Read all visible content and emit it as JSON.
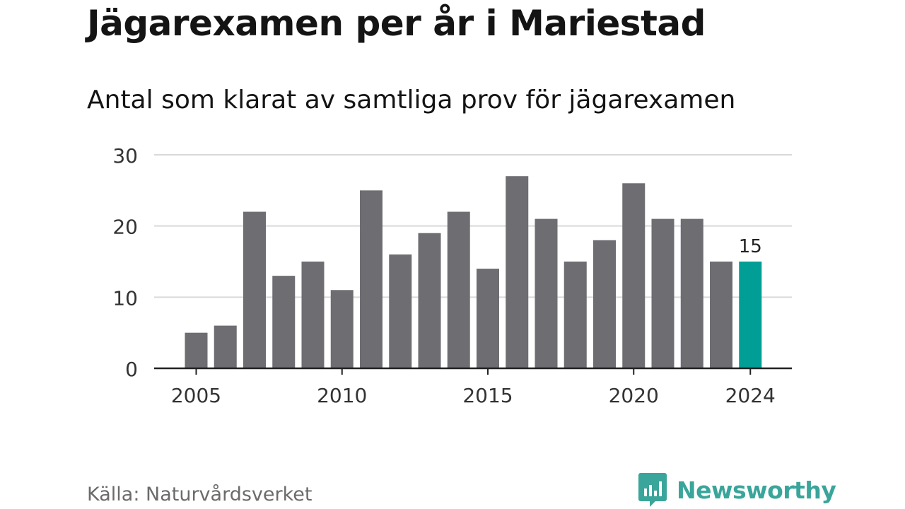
{
  "header": {
    "title": "Jägarexamen per år i Mariestad",
    "subtitle": "Antal som klarat av samtliga prov för jägarexamen"
  },
  "footer": {
    "source": "Källa: Naturvårdsverket",
    "brand": "Newsworthy",
    "brand_icon": "bar-chart-speech-bubble-icon"
  },
  "colors": {
    "bar": "#6e6d72",
    "highlight": "#009e94",
    "grid": "#d9d9d9",
    "axis": "#222222",
    "brand": "#3aa59a"
  },
  "chart_data": {
    "type": "bar",
    "title": "Jägarexamen per år i Mariestad",
    "subtitle": "Antal som klarat av samtliga prov för jägarexamen",
    "xlabel": "",
    "ylabel": "",
    "categories": [
      2005,
      2006,
      2007,
      2008,
      2009,
      2010,
      2011,
      2012,
      2013,
      2014,
      2015,
      2016,
      2017,
      2018,
      2019,
      2020,
      2021,
      2022,
      2023,
      2024
    ],
    "values": [
      5,
      6,
      22,
      13,
      15,
      11,
      25,
      16,
      19,
      22,
      14,
      27,
      21,
      15,
      18,
      26,
      21,
      21,
      15,
      15
    ],
    "highlight": {
      "category": 2024,
      "label": "15"
    },
    "ylim": [
      0,
      30
    ],
    "yticks": [
      0,
      10,
      20,
      30
    ],
    "xticks": [
      2005,
      2010,
      2015,
      2020,
      2024
    ],
    "grid": true,
    "legend": "none"
  }
}
